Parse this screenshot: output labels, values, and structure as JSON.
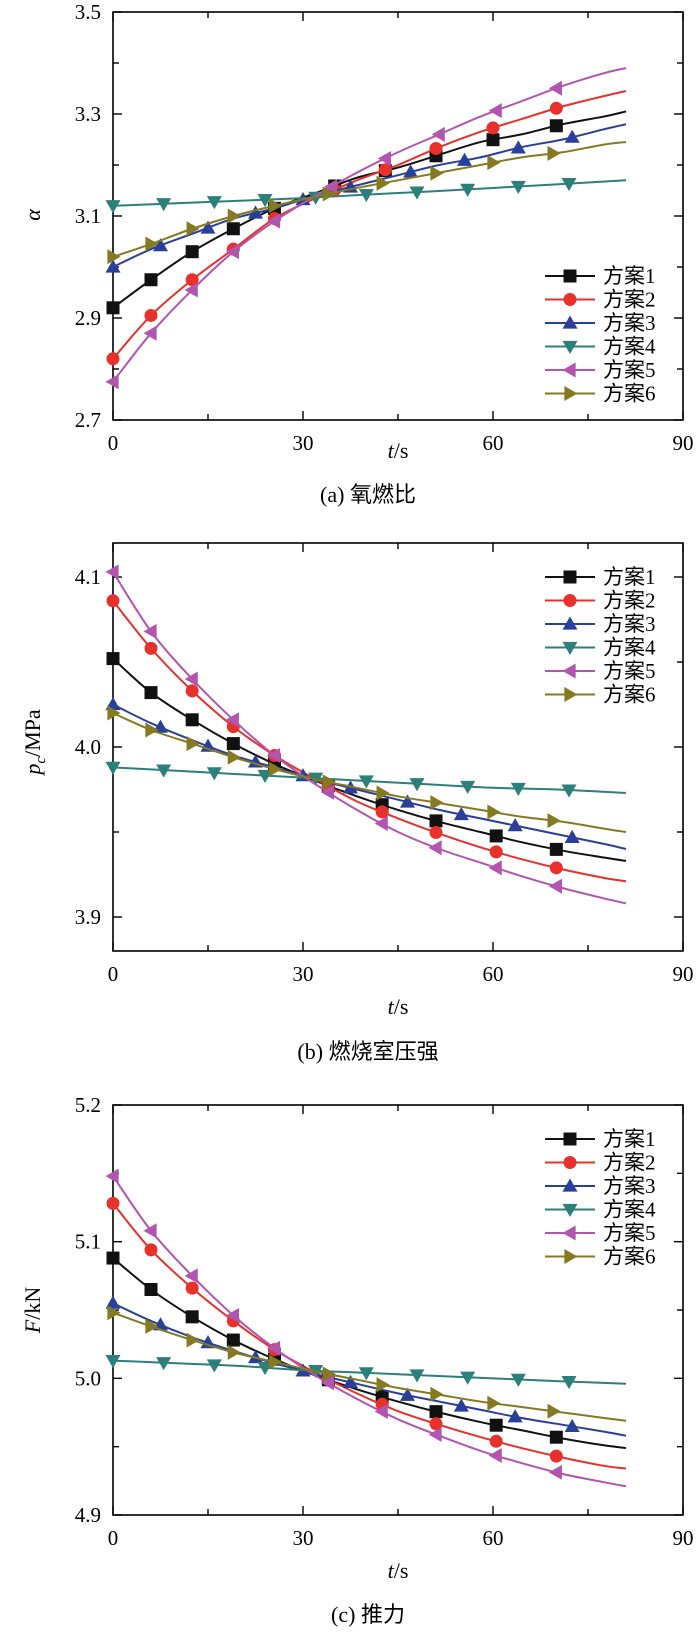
{
  "chart_data": [
    {
      "type": "line",
      "caption": "(a) 氧燃比",
      "xlabel_italic": "t",
      "xlabel_unit": "/s",
      "ylabel_italic": "α",
      "ylabel_sub": "",
      "ylabel_unit": "",
      "xlim": [
        0,
        90
      ],
      "ylim": [
        2.7,
        3.5
      ],
      "xticks": [
        0,
        30,
        60,
        90
      ],
      "xtick_labels": [
        "0",
        "30",
        "60",
        "90"
      ],
      "yticks": [
        2.7,
        2.9,
        3.1,
        3.3,
        3.5
      ],
      "ytick_labels": [
        "2.7",
        "2.9",
        "3.1",
        "3.3",
        "3.5"
      ],
      "legend_position": "lower-right",
      "series": [
        {
          "name": "方案1",
          "color": "#111111",
          "marker": "square",
          "x": [
            0,
            6,
            12.5,
            19,
            25.5,
            32,
            38.5,
            45,
            51.5,
            58,
            64.5,
            71,
            77.5,
            81
          ],
          "y": [
            2.92,
            2.975,
            3.03,
            3.075,
            3.115,
            3.145,
            3.175,
            3.195,
            3.22,
            3.245,
            3.26,
            3.28,
            3.295,
            3.305
          ],
          "marker_x": [
            0,
            6,
            12.5,
            19,
            25.5,
            35,
            43,
            51,
            60,
            70
          ]
        },
        {
          "name": "方案2",
          "color": "#e8312a",
          "marker": "circle",
          "x": [
            0,
            6,
            12.5,
            19,
            25.5,
            32,
            38.5,
            45,
            51.5,
            58,
            64.5,
            71,
            77.5,
            81
          ],
          "y": [
            2.82,
            2.905,
            2.975,
            3.035,
            3.095,
            3.135,
            3.17,
            3.2,
            3.235,
            3.265,
            3.29,
            3.315,
            3.335,
            3.345
          ],
          "marker_x": [
            0,
            6,
            12.5,
            19,
            25.5,
            35,
            43,
            51,
            60,
            70
          ]
        },
        {
          "name": "方案3",
          "color": "#2a3f9a",
          "marker": "triangle-up",
          "x": [
            0,
            6,
            12.5,
            19,
            25.5,
            32,
            38.5,
            45,
            51.5,
            58,
            64.5,
            71,
            77.5,
            81
          ],
          "y": [
            3.0,
            3.035,
            3.065,
            3.095,
            3.115,
            3.14,
            3.16,
            3.18,
            3.2,
            3.215,
            3.235,
            3.25,
            3.27,
            3.28
          ],
          "marker_x": [
            0,
            7.5,
            15,
            22.5,
            30,
            37.5,
            47,
            55.5,
            64,
            72.5
          ]
        },
        {
          "name": "方案4",
          "color": "#2d7f7a",
          "marker": "triangle-down",
          "x": [
            0,
            10,
            20,
            30,
            40,
            50,
            60,
            70,
            81
          ],
          "y": [
            3.12,
            3.125,
            3.13,
            3.135,
            3.142,
            3.148,
            3.155,
            3.162,
            3.17
          ],
          "marker_x": [
            0,
            8,
            16,
            24,
            32,
            40,
            48,
            56,
            64,
            72
          ]
        },
        {
          "name": "方案5",
          "color": "#b155b0",
          "marker": "triangle-left",
          "x": [
            0,
            6,
            12.5,
            19,
            25.5,
            32,
            38.5,
            45,
            51.5,
            58,
            64.5,
            71,
            77.5,
            81
          ],
          "y": [
            2.775,
            2.87,
            2.955,
            3.03,
            3.09,
            3.14,
            3.185,
            3.225,
            3.26,
            3.295,
            3.325,
            3.355,
            3.38,
            3.39
          ],
          "marker_x": [
            0,
            6,
            12.5,
            19,
            25.5,
            34.5,
            43,
            51.5,
            60.5,
            70
          ]
        },
        {
          "name": "方案6",
          "color": "#857a21",
          "marker": "triangle-right",
          "x": [
            0,
            6,
            12.5,
            19,
            25.5,
            32,
            38.5,
            45,
            51.5,
            58,
            64.5,
            71,
            77.5,
            81
          ],
          "y": [
            3.02,
            3.045,
            3.075,
            3.1,
            3.12,
            3.138,
            3.155,
            3.17,
            3.185,
            3.2,
            3.215,
            3.225,
            3.24,
            3.245
          ],
          "marker_x": [
            0,
            6,
            12.5,
            19,
            25.5,
            34,
            42.5,
            51,
            60,
            69.5
          ]
        }
      ]
    },
    {
      "type": "line",
      "caption": "(b) 燃烧室压强",
      "xlabel_italic": "t",
      "xlabel_unit": "/s",
      "ylabel_italic": "p",
      "ylabel_sub": "c",
      "ylabel_unit": "/MPa",
      "xlim": [
        0,
        90
      ],
      "ylim": [
        3.88,
        4.12
      ],
      "xticks": [
        0,
        30,
        60,
        90
      ],
      "xtick_labels": [
        "0",
        "30",
        "60",
        "90"
      ],
      "yticks": [
        3.9,
        4.0,
        4.1
      ],
      "ytick_labels": [
        "3.9",
        "4.0",
        "4.1"
      ],
      "legend_position": "top-right",
      "series": [
        {
          "name": "方案1",
          "color": "#111111",
          "marker": "square",
          "x": [
            0,
            6,
            12.5,
            19,
            25.5,
            32,
            38.5,
            45,
            51.5,
            58,
            64.5,
            71,
            77.5,
            81
          ],
          "y": [
            4.052,
            4.032,
            4.016,
            4.002,
            3.99,
            3.98,
            3.971,
            3.963,
            3.956,
            3.95,
            3.944,
            3.939,
            3.935,
            3.933
          ],
          "marker_x": [
            0,
            6,
            12.5,
            19,
            25.5,
            34,
            42.5,
            51,
            60.5,
            70
          ]
        },
        {
          "name": "方案2",
          "color": "#e8312a",
          "marker": "circle",
          "x": [
            0,
            6,
            12.5,
            19,
            25.5,
            32,
            38.5,
            45,
            51.5,
            58,
            64.5,
            71,
            77.5,
            81
          ],
          "y": [
            4.086,
            4.058,
            4.033,
            4.012,
            3.995,
            3.981,
            3.968,
            3.958,
            3.949,
            3.941,
            3.934,
            3.928,
            3.923,
            3.921
          ],
          "marker_x": [
            0,
            6,
            12.5,
            19,
            25.5,
            34,
            42.5,
            51,
            60.5,
            70
          ]
        },
        {
          "name": "方案3",
          "color": "#2a3f9a",
          "marker": "triangle-up",
          "x": [
            0,
            6,
            12.5,
            19,
            25.5,
            32,
            38.5,
            45,
            51.5,
            58,
            64.5,
            71,
            77.5,
            81
          ],
          "y": [
            4.025,
            4.014,
            4.004,
            3.995,
            3.988,
            3.981,
            3.975,
            3.969,
            3.963,
            3.958,
            3.953,
            3.948,
            3.943,
            3.94
          ],
          "marker_x": [
            0,
            7.5,
            15,
            22.5,
            30,
            37.5,
            46.5,
            55,
            63.5,
            72.5
          ]
        },
        {
          "name": "方案4",
          "color": "#2d7f7a",
          "marker": "triangle-down",
          "x": [
            0,
            10,
            20,
            30,
            40,
            50,
            60,
            70,
            81
          ],
          "y": [
            3.988,
            3.986,
            3.984,
            3.982,
            3.98,
            3.978,
            3.976,
            3.975,
            3.973
          ],
          "marker_x": [
            0,
            8,
            16,
            24,
            32,
            40,
            48,
            56,
            64,
            72
          ]
        },
        {
          "name": "方案5",
          "color": "#b155b0",
          "marker": "triangle-left",
          "x": [
            0,
            6,
            12.5,
            19,
            25.5,
            32,
            38.5,
            45,
            51.5,
            58,
            64.5,
            71,
            77.5,
            81
          ],
          "y": [
            4.103,
            4.068,
            4.04,
            4.016,
            3.995,
            3.978,
            3.963,
            3.95,
            3.94,
            3.932,
            3.924,
            3.917,
            3.911,
            3.908
          ],
          "marker_x": [
            0,
            6,
            12.5,
            19,
            25.5,
            34,
            42.5,
            51,
            60.5,
            70
          ]
        },
        {
          "name": "方案6",
          "color": "#857a21",
          "marker": "triangle-right",
          "x": [
            0,
            6,
            12.5,
            19,
            25.5,
            32,
            38.5,
            45,
            51.5,
            58,
            64.5,
            71,
            77.5,
            81
          ],
          "y": [
            4.02,
            4.01,
            4.002,
            3.994,
            3.987,
            3.981,
            3.976,
            3.971,
            3.967,
            3.963,
            3.959,
            3.956,
            3.952,
            3.95
          ],
          "marker_x": [
            0,
            6,
            12.5,
            19,
            25.5,
            34,
            42.5,
            51,
            60,
            69.5
          ]
        }
      ]
    },
    {
      "type": "line",
      "caption": "(c) 推力",
      "xlabel_italic": "t",
      "xlabel_unit": "/s",
      "ylabel_italic": "F",
      "ylabel_sub": "",
      "ylabel_unit": "/kN",
      "xlim": [
        0,
        90
      ],
      "ylim": [
        4.9,
        5.2
      ],
      "xticks": [
        0,
        30,
        60,
        90
      ],
      "xtick_labels": [
        "0",
        "30",
        "60",
        "90"
      ],
      "yticks": [
        4.9,
        5.0,
        5.1,
        5.2
      ],
      "ytick_labels": [
        "4.9",
        "5.0",
        "5.1",
        "5.2"
      ],
      "legend_position": "top-right",
      "series": [
        {
          "name": "方案1",
          "color": "#111111",
          "marker": "square",
          "x": [
            0,
            6,
            12.5,
            19,
            25.5,
            32,
            38.5,
            45,
            51.5,
            58,
            64.5,
            71,
            77.5,
            81
          ],
          "y": [
            5.088,
            5.065,
            5.045,
            5.028,
            5.014,
            5.002,
            4.992,
            4.983,
            4.975,
            4.968,
            4.962,
            4.956,
            4.951,
            4.949
          ],
          "marker_x": [
            0,
            6,
            12.5,
            19,
            25.5,
            34,
            42.5,
            51,
            60.5,
            70
          ]
        },
        {
          "name": "方案2",
          "color": "#e8312a",
          "marker": "circle",
          "x": [
            0,
            6,
            12.5,
            19,
            25.5,
            32,
            38.5,
            45,
            51.5,
            58,
            64.5,
            71,
            77.5,
            81
          ],
          "y": [
            5.128,
            5.094,
            5.066,
            5.042,
            5.021,
            5.004,
            4.989,
            4.976,
            4.966,
            4.957,
            4.949,
            4.942,
            4.936,
            4.934
          ],
          "marker_x": [
            0,
            6,
            12.5,
            19,
            25.5,
            34,
            42.5,
            51,
            60.5,
            70
          ]
        },
        {
          "name": "方案3",
          "color": "#2a3f9a",
          "marker": "triangle-up",
          "x": [
            0,
            6,
            12.5,
            19,
            25.5,
            32,
            38.5,
            45,
            51.5,
            58,
            64.5,
            71,
            77.5,
            81
          ],
          "y": [
            5.055,
            5.042,
            5.03,
            5.02,
            5.011,
            5.003,
            4.996,
            4.989,
            4.983,
            4.977,
            4.971,
            4.966,
            4.961,
            4.958
          ],
          "marker_x": [
            0,
            7.5,
            15,
            22.5,
            30,
            37.5,
            46.5,
            55,
            63.5,
            72.5
          ]
        },
        {
          "name": "方案4",
          "color": "#2d7f7a",
          "marker": "triangle-down",
          "x": [
            0,
            10,
            20,
            30,
            40,
            50,
            60,
            70,
            81
          ],
          "y": [
            5.013,
            5.011,
            5.009,
            5.006,
            5.004,
            5.002,
            5.0,
            4.998,
            4.996
          ],
          "marker_x": [
            0,
            8,
            16,
            24,
            32,
            40,
            48,
            56,
            64,
            72
          ]
        },
        {
          "name": "方案5",
          "color": "#b155b0",
          "marker": "triangle-left",
          "x": [
            0,
            6,
            12.5,
            19,
            25.5,
            32,
            38.5,
            45,
            51.5,
            58,
            64.5,
            71,
            77.5,
            81
          ],
          "y": [
            5.148,
            5.108,
            5.075,
            5.046,
            5.022,
            5.002,
            4.985,
            4.97,
            4.958,
            4.947,
            4.938,
            4.93,
            4.924,
            4.921
          ],
          "marker_x": [
            0,
            6,
            12.5,
            19,
            25.5,
            34,
            42.5,
            51,
            60.5,
            70
          ]
        },
        {
          "name": "方案6",
          "color": "#857a21",
          "marker": "triangle-right",
          "x": [
            0,
            6,
            12.5,
            19,
            25.5,
            32,
            38.5,
            45,
            51.5,
            58,
            64.5,
            71,
            77.5,
            81
          ],
          "y": [
            5.048,
            5.038,
            5.028,
            5.019,
            5.012,
            5.005,
            4.999,
            4.993,
            4.988,
            4.983,
            4.979,
            4.975,
            4.971,
            4.969
          ],
          "marker_x": [
            0,
            6,
            12.5,
            19,
            25.5,
            34,
            42.5,
            51,
            60,
            69.5
          ]
        }
      ]
    }
  ]
}
